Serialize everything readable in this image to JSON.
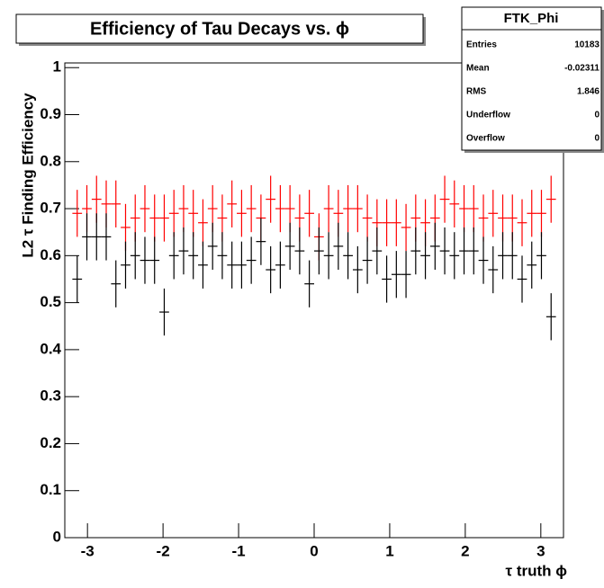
{
  "chart_data": {
    "type": "errorbar",
    "title": "Efficiency of Tau Decays vs. ϕ",
    "xlabel": "τ truth ϕ",
    "ylabel": "L2 τ Finding Efficiency",
    "x": [
      -3.136,
      -3.008,
      -2.88,
      -2.752,
      -2.624,
      -2.496,
      -2.368,
      -2.24,
      -2.112,
      -1.984,
      -1.856,
      -1.728,
      -1.6,
      -1.472,
      -1.344,
      -1.216,
      -1.088,
      -0.96,
      -0.832,
      -0.704,
      -0.576,
      -0.448,
      -0.32,
      -0.192,
      -0.064,
      0.064,
      0.192,
      0.32,
      0.448,
      0.576,
      0.704,
      0.832,
      0.96,
      1.088,
      1.216,
      1.344,
      1.472,
      1.6,
      1.728,
      1.856,
      1.984,
      2.112,
      2.24,
      2.368,
      2.496,
      2.624,
      2.752,
      2.88,
      3.008,
      3.136
    ],
    "xerr": 0.064,
    "series": [
      {
        "color": "#ff0000",
        "yerr": 0.05,
        "values": [
          0.69,
          0.7,
          0.72,
          0.71,
          0.71,
          0.66,
          0.68,
          0.7,
          0.68,
          0.68,
          0.69,
          0.7,
          0.69,
          0.67,
          0.7,
          0.68,
          0.71,
          0.69,
          0.7,
          0.68,
          0.72,
          0.7,
          0.7,
          0.68,
          0.69,
          0.64,
          0.7,
          0.69,
          0.7,
          0.7,
          0.68,
          0.67,
          0.67,
          0.67,
          0.66,
          0.68,
          0.67,
          0.68,
          0.72,
          0.71,
          0.7,
          0.7,
          0.68,
          0.69,
          0.68,
          0.68,
          0.67,
          0.69,
          0.69,
          0.72
        ]
      },
      {
        "color": "#000000",
        "yerr": 0.05,
        "values": [
          0.55,
          0.64,
          0.64,
          0.64,
          0.54,
          0.58,
          0.6,
          0.59,
          0.59,
          0.48,
          0.6,
          0.61,
          0.6,
          0.58,
          0.62,
          0.6,
          0.58,
          0.58,
          0.59,
          0.63,
          0.57,
          0.58,
          0.62,
          0.61,
          0.54,
          0.61,
          0.6,
          0.62,
          0.6,
          0.57,
          0.59,
          0.61,
          0.55,
          0.56,
          0.56,
          0.61,
          0.6,
          0.62,
          0.61,
          0.6,
          0.61,
          0.61,
          0.59,
          0.57,
          0.6,
          0.6,
          0.55,
          0.58,
          0.6,
          0.47
        ]
      }
    ],
    "xlim": [
      -3.3,
      3.3
    ],
    "ylim": [
      0,
      1.01
    ],
    "xticks": [
      -3,
      -2,
      -1,
      0,
      1,
      2,
      3
    ],
    "yticks": [
      0,
      0.1,
      0.2,
      0.3,
      0.4,
      0.5,
      0.6,
      0.7,
      0.8,
      0.9,
      1
    ],
    "stats_box": {
      "title": "FTK_Phi",
      "rows": [
        [
          "Entries",
          10183
        ],
        [
          "Mean",
          -0.02311
        ],
        [
          "RMS",
          1.846
        ],
        [
          "Underflow",
          0
        ],
        [
          "Overflow",
          0
        ]
      ]
    }
  }
}
